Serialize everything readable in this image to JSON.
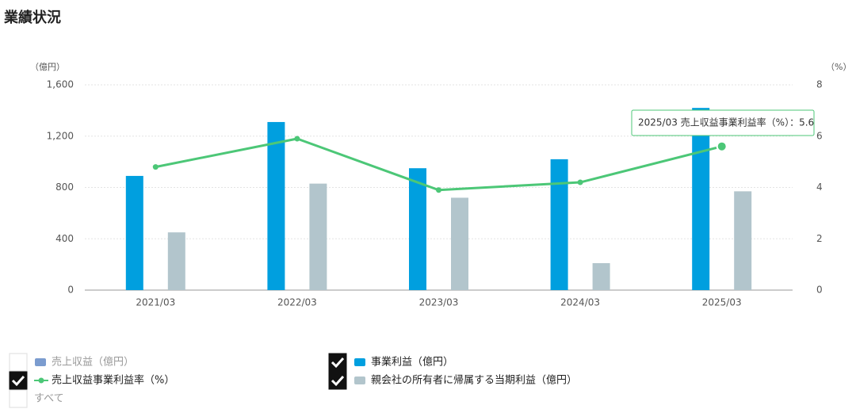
{
  "chart_data": {
    "type": "bar",
    "title": "業績状況",
    "y_label": "（億円）",
    "y2_label": "（%）",
    "categories": [
      "2021/03",
      "2022/03",
      "2023/03",
      "2024/03",
      "2025/03"
    ],
    "series": [
      {
        "name": "売上収益（億円）",
        "type": "bar",
        "color": "#7b9ccf",
        "checked": false,
        "values": [
          null,
          null,
          null,
          null,
          null
        ]
      },
      {
        "name": "事業利益（億円）",
        "type": "bar",
        "color": "#009fdf",
        "checked": true,
        "values": [
          890,
          1310,
          950,
          1020,
          1420
        ]
      },
      {
        "name": "売上収益事業利益率（%）",
        "type": "line",
        "axis": "y2",
        "color": "#4cc777",
        "checked": true,
        "values": [
          4.8,
          5.9,
          3.9,
          4.2,
          5.6
        ]
      },
      {
        "name": "親会社の所有者に帰属する当期利益（億円）",
        "type": "bar",
        "color": "#b2c5cc",
        "checked": true,
        "values": [
          450,
          830,
          720,
          210,
          770
        ]
      }
    ],
    "ylim": [
      0,
      1600
    ],
    "yticks": [
      0,
      400,
      800,
      {
        "value": 1200,
        "label": "1,200"
      },
      {
        "value": 1600,
        "label": "1,600"
      }
    ],
    "y2lim": [
      0,
      8
    ],
    "y2ticks": [
      0,
      2,
      4,
      6,
      8
    ],
    "grid": true,
    "tooltip": "2025/03 売上収益事業利益率（%）：5.6",
    "legend_all": {
      "label": "すべて",
      "checked": false
    }
  }
}
